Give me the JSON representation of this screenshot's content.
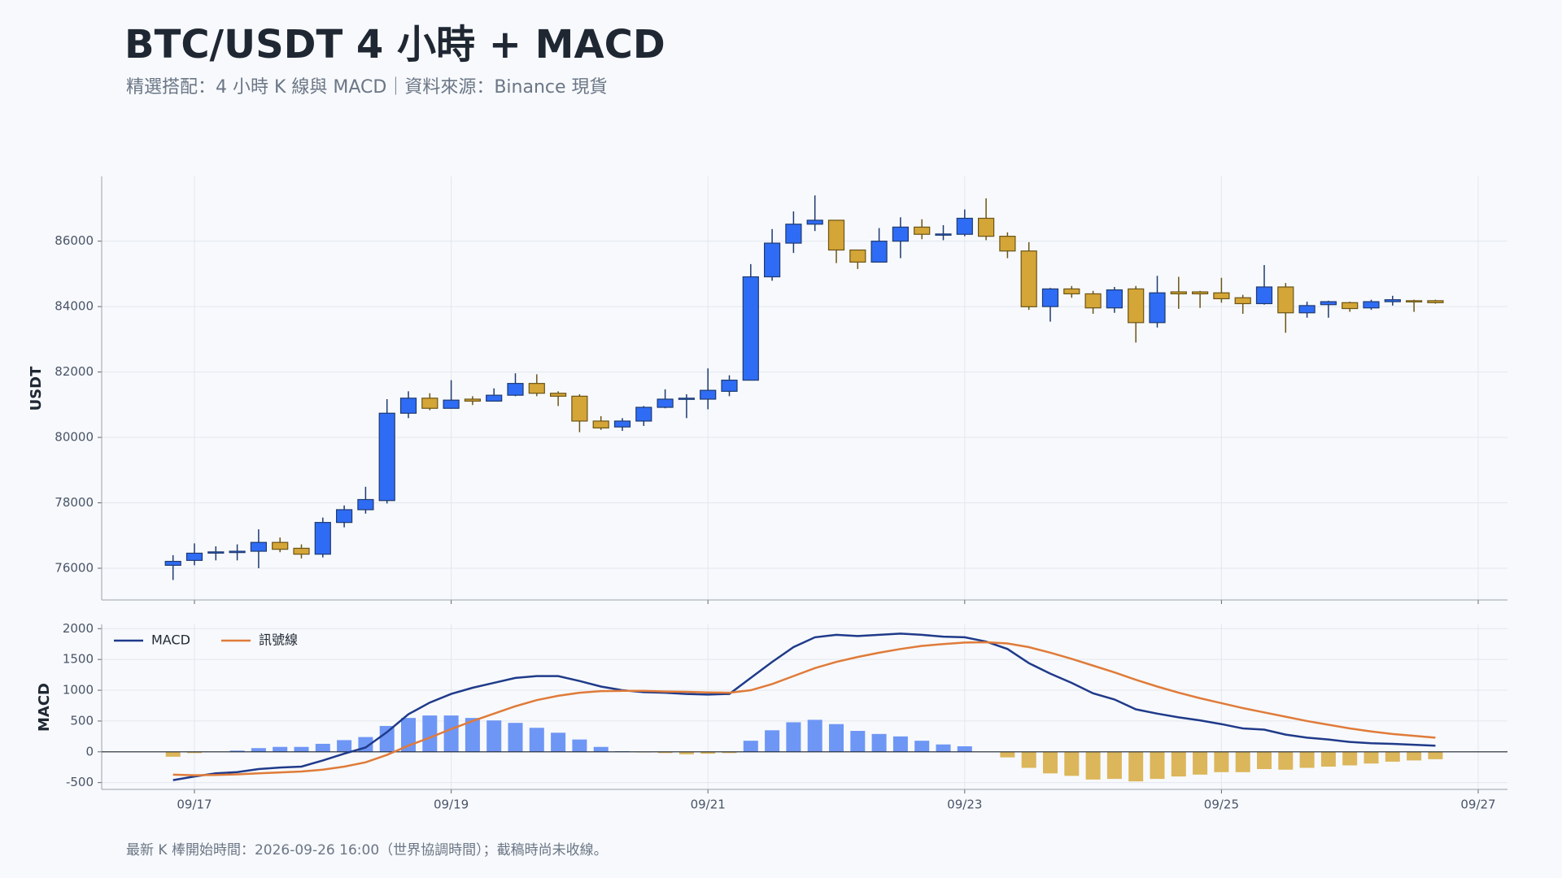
{
  "chart_data": [
    {
      "type": "candlestick",
      "title": "BTC/USDT 4 小時 + MACD",
      "subtitle": "精選搭配：4 小時 K 線與 MACD｜資料來源：Binance 現貨",
      "ylabel": "USDT",
      "ylim": [
        75030,
        87980
      ],
      "yticks": [
        76000,
        78000,
        80000,
        82000,
        84000,
        86000
      ],
      "grid": true,
      "up_color": "#2f6cf5",
      "up_edge": "#1e3a70",
      "down_color": "#d4a537",
      "down_edge": "#6b5416",
      "open": [
        76090,
        76240,
        76490,
        76480,
        76520,
        76790,
        76610,
        76430,
        77400,
        77790,
        78070,
        80740,
        81200,
        80890,
        81170,
        81110,
        81290,
        81650,
        81350,
        81260,
        80500,
        80320,
        80500,
        80920,
        81190,
        81170,
        81410,
        81750,
        84910,
        85940,
        86520,
        86640,
        85730,
        85360,
        86000,
        86430,
        86200,
        86210,
        86700,
        86150,
        85700,
        84000,
        84540,
        84390,
        83960,
        84540,
        83510,
        84450,
        84450,
        84420,
        84270,
        84090,
        84600,
        83810,
        84060,
        84120,
        83960,
        84150,
        84180,
        84180,
        null,
        null
      ],
      "high": [
        76400,
        76760,
        76670,
        76730,
        77190,
        76940,
        76730,
        77550,
        77920,
        78490,
        81170,
        81410,
        81350,
        81750,
        81260,
        81500,
        81960,
        81930,
        81410,
        81320,
        80650,
        80590,
        80960,
        81470,
        81320,
        82110,
        81900,
        85300,
        86370,
        86910,
        87400,
        86640,
        85730,
        86400,
        86730,
        86670,
        86490,
        86970,
        87310,
        86270,
        85970,
        84570,
        84630,
        84480,
        84600,
        84630,
        84940,
        84910,
        84480,
        84880,
        84360,
        85270,
        84720,
        84150,
        84180,
        84150,
        84210,
        84330,
        84210,
        84210,
        null,
        null
      ],
      "low": [
        75640,
        76090,
        76240,
        76240,
        76000,
        76490,
        76300,
        76330,
        77250,
        77670,
        77980,
        80590,
        80830,
        80890,
        80990,
        81110,
        81260,
        81260,
        80960,
        80160,
        80230,
        80200,
        80350,
        80890,
        80590,
        80860,
        81260,
        81750,
        84790,
        85640,
        86310,
        85330,
        85150,
        85360,
        85480,
        86060,
        86030,
        86150,
        86030,
        85480,
        83900,
        83540,
        84270,
        83780,
        83810,
        82900,
        83360,
        83930,
        83960,
        84120,
        83780,
        84060,
        83200,
        83660,
        83660,
        83840,
        83900,
        84030,
        83840,
        84090,
        null,
        null
      ],
      "close": [
        76210,
        76460,
        76500,
        76520,
        76790,
        76580,
        76430,
        77400,
        77790,
        78100,
        80740,
        81200,
        80890,
        81140,
        81110,
        81290,
        81650,
        81350,
        81260,
        80500,
        80290,
        80500,
        80920,
        81170,
        81200,
        81440,
        81750,
        84910,
        85940,
        86520,
        86640,
        85730,
        85360,
        86000,
        86430,
        86210,
        86220,
        86700,
        86150,
        85700,
        83995,
        84540,
        84390,
        83960,
        84510,
        83510,
        84420,
        84390,
        84390,
        84240,
        84090,
        84600,
        83810,
        84030,
        84150,
        83940,
        84150,
        84210,
        84150,
        84120,
        null,
        null
      ]
    },
    {
      "type": "macd",
      "ylabel": "MACD",
      "ylim": [
        -610,
        2070
      ],
      "yticks": [
        -500,
        0,
        500,
        1000,
        1500,
        2000
      ],
      "grid": true,
      "legend": "upper left",
      "footnote": "最新 K 棒開始時間：2026-09-26 16:00（世界協調時間）；截稿時尚未收線。",
      "categories": [
        null,
        "09/17",
        null,
        null,
        null,
        null,
        null,
        null,
        null,
        null,
        null,
        null,
        null,
        "09/19",
        null,
        null,
        null,
        null,
        null,
        null,
        null,
        null,
        null,
        null,
        null,
        "09/21",
        null,
        null,
        null,
        null,
        null,
        null,
        null,
        null,
        null,
        null,
        null,
        "09/23",
        null,
        null,
        null,
        null,
        null,
        null,
        null,
        null,
        null,
        null,
        null,
        "09/25",
        null,
        null,
        null,
        null,
        null,
        null,
        null,
        null,
        null,
        null,
        null,
        "09/27"
      ],
      "series": [
        {
          "name": "MACD",
          "color": "#1f3a8a",
          "values": [
            -460,
            -400,
            -350,
            -330,
            -280,
            -255,
            -240,
            -140,
            -30,
            70,
            320,
            610,
            800,
            940,
            1040,
            1120,
            1200,
            1230,
            1230,
            1150,
            1060,
            1000,
            970,
            960,
            940,
            930,
            940,
            1200,
            1460,
            1700,
            1860,
            1900,
            1880,
            1900,
            1920,
            1900,
            1870,
            1860,
            1790,
            1670,
            1440,
            1270,
            1120,
            950,
            850,
            690,
            620,
            560,
            510,
            450,
            380,
            360,
            280,
            230,
            200,
            160,
            140,
            130,
            115,
            100,
            null,
            null
          ]
        },
        {
          "name": "訊號線",
          "color": "#e07b39",
          "values": [
            -370,
            -380,
            -375,
            -365,
            -350,
            -335,
            -320,
            -290,
            -240,
            -170,
            -50,
            100,
            230,
            370,
            500,
            620,
            740,
            840,
            910,
            960,
            985,
            990,
            990,
            980,
            975,
            965,
            960,
            1000,
            1100,
            1230,
            1360,
            1460,
            1540,
            1610,
            1670,
            1720,
            1750,
            1775,
            1780,
            1760,
            1700,
            1610,
            1510,
            1400,
            1290,
            1170,
            1060,
            960,
            870,
            790,
            710,
            640,
            570,
            500,
            440,
            380,
            330,
            290,
            260,
            230,
            null,
            null
          ]
        }
      ],
      "histogram": {
        "up_color": "#6e96f5",
        "down_color": "#dcb65a",
        "values": [
          -80,
          -20,
          0,
          20,
          60,
          80,
          80,
          130,
          190,
          240,
          420,
          550,
          590,
          590,
          550,
          510,
          470,
          390,
          310,
          200,
          80,
          10,
          -10,
          -20,
          -40,
          -30,
          -20,
          180,
          350,
          480,
          520,
          450,
          340,
          290,
          250,
          180,
          120,
          90,
          0,
          -90,
          -260,
          -350,
          -390,
          -450,
          -440,
          -480,
          -440,
          -400,
          -370,
          -330,
          -330,
          -280,
          -290,
          -260,
          -240,
          -220,
          -190,
          -160,
          -140,
          -120,
          null,
          null
        ]
      }
    }
  ]
}
